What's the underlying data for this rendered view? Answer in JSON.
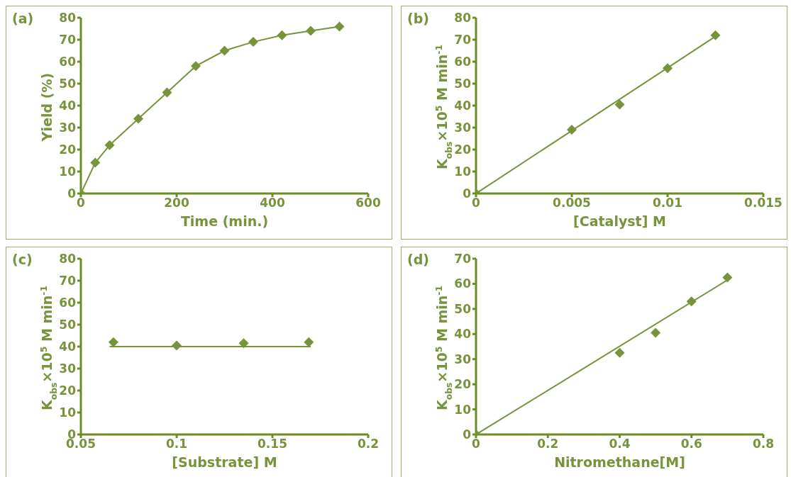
{
  "chart_data": [
    {
      "type": "line",
      "title": "(a)",
      "xlabel": "Time (min.)",
      "ylabel": "Yield (%)",
      "xlim": [
        0,
        600
      ],
      "xticks": [
        0,
        200,
        400,
        600
      ],
      "ylim": [
        0,
        80
      ],
      "yticks": [
        0,
        10,
        20,
        30,
        40,
        50,
        60,
        70,
        80
      ],
      "grid": false,
      "marker": "diamond",
      "line_style": "solid",
      "series": [
        {
          "color": "#77933c",
          "x": [
            0,
            30,
            60,
            120,
            180,
            240,
            300,
            360,
            420,
            480,
            540
          ],
          "values": [
            0,
            14,
            22,
            34,
            46,
            58,
            65,
            69,
            72,
            74,
            76
          ]
        }
      ]
    },
    {
      "type": "scatter",
      "title": "(b)",
      "xlabel": "[Catalyst] M",
      "ylabel": "K$_{obs}$×10$^{5}$ M min$^{-1}$",
      "xlim": [
        0,
        0.015
      ],
      "xticks": [
        0,
        0.005,
        0.01,
        0.015
      ],
      "ylim": [
        0,
        80
      ],
      "yticks": [
        0,
        10,
        20,
        30,
        40,
        50,
        60,
        70,
        80
      ],
      "grid": false,
      "marker": "diamond",
      "line_style": "solid",
      "series": [
        {
          "color": "#77933c",
          "x": [
            0,
            0.005,
            0.0075,
            0.01,
            0.0125
          ],
          "values": [
            0,
            29,
            40.5,
            57,
            72
          ]
        },
        {
          "type": "line",
          "marker": "none",
          "color": "#77933c",
          "x": [
            0,
            0.0125
          ],
          "values": [
            0,
            71.5
          ]
        }
      ]
    },
    {
      "type": "scatter",
      "title": "(c)",
      "xlabel": "[Substrate] M",
      "ylabel": "K$_{obs}$×10$^{5}$ M min$^{-1}$",
      "xlim": [
        0.05,
        0.2
      ],
      "xticks": [
        0.05,
        0.1,
        0.15,
        0.2
      ],
      "ylim": [
        0,
        80
      ],
      "yticks": [
        0,
        10,
        20,
        30,
        40,
        50,
        60,
        70,
        80
      ],
      "grid": false,
      "marker": "diamond",
      "line_style": "solid",
      "series": [
        {
          "color": "#77933c",
          "x": [
            0.067,
            0.1,
            0.135,
            0.169
          ],
          "values": [
            42,
            40.5,
            41.5,
            42
          ]
        },
        {
          "type": "line",
          "marker": "none",
          "color": "#77933c",
          "x": [
            0.065,
            0.17
          ],
          "values": [
            40,
            40
          ]
        }
      ]
    },
    {
      "type": "scatter",
      "title": "(d)",
      "xlabel": "Nitromethane[M]",
      "ylabel": "K$_{obs}$×10$^{5}$ M min$^{-1}$",
      "xlim": [
        0,
        0.8
      ],
      "xticks": [
        0,
        0.2,
        0.4,
        0.6,
        0.8
      ],
      "ylim": [
        0,
        70
      ],
      "yticks": [
        0,
        10,
        20,
        30,
        40,
        50,
        60,
        70
      ],
      "grid": false,
      "marker": "diamond",
      "line_style": "solid",
      "series": [
        {
          "color": "#77933c",
          "x": [
            0,
            0.4,
            0.5,
            0.6,
            0.7
          ],
          "values": [
            0,
            32.5,
            40.5,
            53,
            62.5
          ]
        },
        {
          "type": "line",
          "marker": "none",
          "color": "#77933c",
          "x": [
            0,
            0.7
          ],
          "values": [
            0,
            61.5
          ]
        }
      ]
    }
  ]
}
